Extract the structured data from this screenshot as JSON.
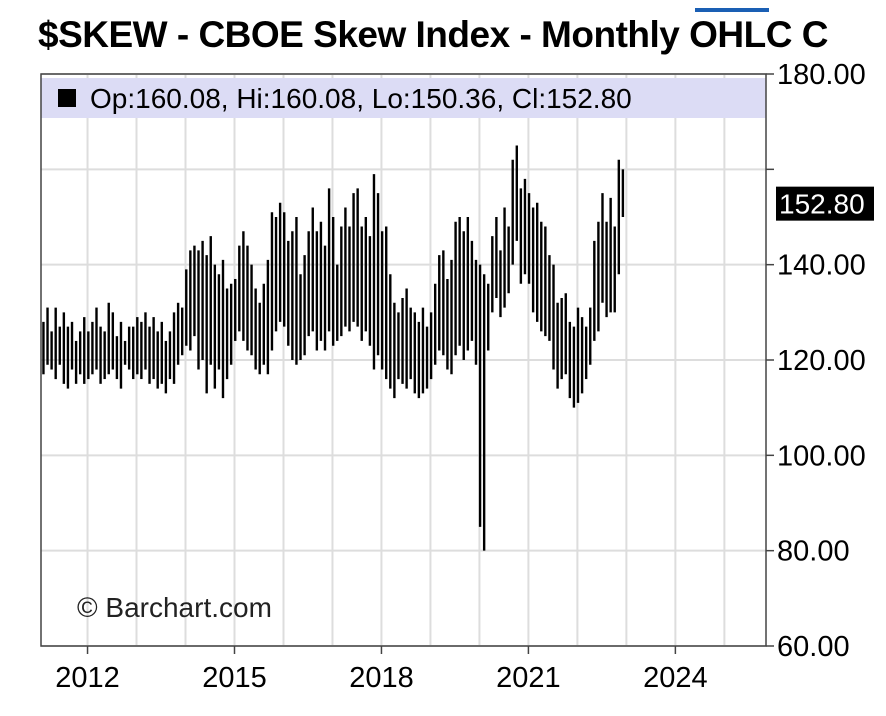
{
  "page": {
    "title": "$SKEW - CBOE Skew Index - Monthly OHLC C"
  },
  "chart_data": {
    "type": "ohlc",
    "title": "$SKEW - CBOE Skew Index - Monthly OHLC C",
    "legend": {
      "text": "Op:160.08, Hi:160.08, Lo:150.36, Cl:152.80",
      "position": "top-left"
    },
    "watermark": "© Barchart.com",
    "last_value_label": "152.80",
    "ylim": [
      60,
      180
    ],
    "y_ticks": [
      60,
      80,
      100,
      120,
      140,
      160,
      180
    ],
    "y_tick_labels": [
      "60.00",
      "80.00",
      "100.00",
      "120.00",
      "140.00",
      "",
      "180.00"
    ],
    "x_ticks": [
      2012,
      2015,
      2018,
      2021,
      2024
    ],
    "x_tick_labels": [
      "2012",
      "2015",
      "2018",
      "2021",
      "2024"
    ],
    "xlim": [
      2011.05,
      2025.85
    ],
    "grid": true,
    "y_axis_side": "right",
    "colors": {
      "bars": "#000000",
      "legend_bg": "#dcdcf5",
      "grid": "#dddddd",
      "accent": "#1a5fb4"
    },
    "bars": {
      "start": 2011.1,
      "step": 0.0833,
      "high": [
        128,
        131,
        126,
        131,
        127,
        130,
        127,
        128,
        124,
        126,
        129,
        126,
        128,
        131,
        127,
        126,
        132,
        130,
        125,
        128,
        124,
        127,
        127,
        129,
        128,
        130,
        127,
        129,
        126,
        128,
        124,
        126,
        130,
        132,
        131,
        139,
        143,
        144,
        143,
        145,
        142,
        146,
        140,
        138,
        141,
        135,
        136,
        137,
        144,
        147,
        144,
        140,
        135,
        132,
        136,
        141,
        151,
        150,
        153,
        151,
        145,
        147,
        150,
        138,
        142,
        147,
        152,
        147,
        149,
        144,
        156,
        150,
        140,
        148,
        152,
        148,
        155,
        156,
        148,
        150,
        146,
        159,
        155,
        147,
        148,
        138,
        132,
        130,
        133,
        135,
        131,
        130,
        128,
        131,
        127,
        130,
        136,
        142,
        143,
        137,
        141,
        149,
        150,
        147,
        150,
        145,
        141,
        140,
        138,
        136,
        146,
        150,
        143,
        152,
        148,
        162,
        165,
        156,
        158,
        155,
        152,
        153,
        149,
        148,
        142,
        140,
        132,
        133,
        134,
        128,
        127,
        131,
        129,
        127,
        131,
        145,
        149,
        155,
        149,
        154,
        148,
        162,
        160
      ],
      "low": [
        117,
        119,
        118,
        116,
        119,
        115,
        114,
        118,
        115,
        117,
        115,
        116,
        117,
        118,
        115,
        116,
        117,
        118,
        116,
        114,
        119,
        118,
        116,
        117,
        116,
        118,
        115,
        116,
        114,
        115,
        113,
        116,
        115,
        119,
        121,
        123,
        122,
        125,
        118,
        120,
        113,
        119,
        114,
        118,
        112,
        116,
        119,
        124,
        126,
        124,
        122,
        121,
        118,
        117,
        119,
        117,
        122,
        126,
        128,
        127,
        123,
        120,
        119,
        120,
        121,
        125,
        126,
        122,
        124,
        122,
        126,
        123,
        124,
        125,
        127,
        126,
        128,
        127,
        124,
        126,
        123,
        118,
        121,
        118,
        116,
        114,
        112,
        116,
        115,
        114,
        116,
        113,
        112,
        113,
        114,
        116,
        119,
        122,
        121,
        118,
        117,
        121,
        123,
        120,
        122,
        124,
        119,
        85,
        80,
        122,
        130,
        133,
        129,
        131,
        134,
        140,
        145,
        136,
        138,
        136,
        130,
        128,
        126,
        125,
        124,
        118,
        114,
        116,
        117,
        112,
        110,
        111,
        113,
        116,
        119,
        124,
        126,
        132,
        129,
        130,
        130,
        138,
        150
      ]
    }
  }
}
